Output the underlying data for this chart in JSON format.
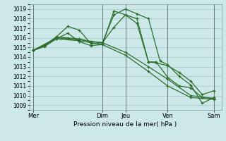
{
  "bg_color": "#cce8e8",
  "grid_color": "#aacccc",
  "line_color": "#2d6e2d",
  "xlabel": "Pression niveau de la mer( hPa )",
  "ylim": [
    1008.5,
    1019.5
  ],
  "yticks": [
    1009,
    1010,
    1011,
    1012,
    1013,
    1014,
    1015,
    1016,
    1017,
    1018,
    1019
  ],
  "xlim": [
    0,
    100
  ],
  "xtick_labels": [
    "Mer",
    "Dim",
    "Jeu",
    "Ven",
    "Sam"
  ],
  "xtick_positions": [
    2,
    38,
    50,
    72,
    96
  ],
  "vlines": [
    2,
    38,
    50,
    72,
    96
  ],
  "vline_color": "#556666",
  "lines": [
    {
      "x": [
        2,
        8,
        14,
        20,
        26,
        32,
        38,
        44,
        50,
        56,
        62,
        68,
        72,
        78,
        84,
        90,
        96
      ],
      "y": [
        1014.7,
        1015.2,
        1016.1,
        1016.0,
        1015.9,
        1015.6,
        1015.5,
        1018.4,
        1019.0,
        1018.5,
        1018.0,
        1013.6,
        1013.2,
        1012.0,
        1011.1,
        1009.2,
        1009.8
      ]
    },
    {
      "x": [
        2,
        8,
        14,
        20,
        26,
        32,
        38,
        44,
        50,
        56,
        62,
        66,
        72,
        78,
        84,
        90,
        96
      ],
      "y": [
        1014.7,
        1015.2,
        1016.1,
        1017.2,
        1016.8,
        1015.4,
        1015.5,
        1017.1,
        1018.4,
        1017.5,
        1013.5,
        1013.5,
        1011.9,
        1011.0,
        1010.8,
        1009.8,
        1009.7
      ]
    },
    {
      "x": [
        2,
        14,
        26,
        38,
        50,
        62,
        72,
        84,
        96
      ],
      "y": [
        1014.7,
        1016.0,
        1015.8,
        1015.5,
        1014.5,
        1013.0,
        1011.7,
        1010.0,
        1009.7
      ]
    },
    {
      "x": [
        2,
        14,
        26,
        38,
        50,
        62,
        72,
        84,
        96
      ],
      "y": [
        1014.7,
        1015.9,
        1015.7,
        1015.3,
        1014.2,
        1012.5,
        1011.0,
        1009.8,
        1009.6
      ]
    },
    {
      "x": [
        2,
        8,
        14,
        20,
        26,
        32,
        38,
        44,
        50,
        56,
        62,
        66,
        72,
        78,
        84,
        90,
        96
      ],
      "y": [
        1014.7,
        1015.1,
        1015.9,
        1016.5,
        1015.6,
        1015.2,
        1015.3,
        1018.8,
        1018.4,
        1018.0,
        1013.5,
        1013.4,
        1013.1,
        1012.4,
        1011.5,
        1010.1,
        1010.5
      ]
    }
  ]
}
